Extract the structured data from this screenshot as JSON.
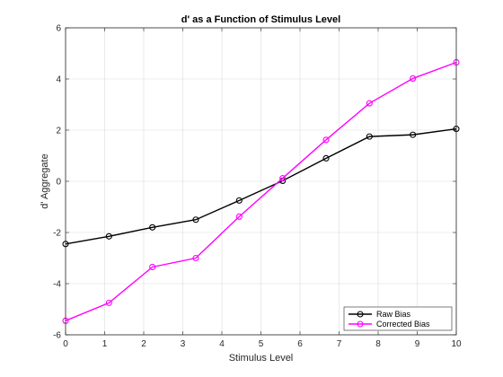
{
  "chart_data": {
    "type": "line",
    "title": "d' as a Function of Stimulus Level",
    "xlabel": "Stimulus Level",
    "ylabel": "d' Aggregate",
    "xlim": [
      0,
      10
    ],
    "ylim": [
      -6,
      6
    ],
    "xticks": [
      "0",
      "1",
      "2",
      "3",
      "4",
      "5",
      "6",
      "7",
      "8",
      "9",
      "10"
    ],
    "yticks": [
      "-6",
      "-4",
      "-2",
      "0",
      "2",
      "4",
      "6"
    ],
    "grid": true,
    "legend_position": "bottom-right",
    "x": [
      0,
      1.111,
      2.222,
      3.333,
      4.444,
      5.556,
      6.667,
      7.778,
      8.889,
      10
    ],
    "series": [
      {
        "name": "Raw Bias",
        "color": "#000000",
        "marker": "circle",
        "values": [
          -2.45,
          -2.15,
          -1.8,
          -1.5,
          -0.75,
          0.02,
          0.9,
          1.75,
          1.82,
          2.05
        ]
      },
      {
        "name": "Corrected Bias",
        "color": "#ff00ff",
        "marker": "circle",
        "values": [
          -5.45,
          -4.75,
          -3.35,
          -3.0,
          -1.38,
          0.12,
          1.62,
          3.05,
          4.02,
          4.65
        ]
      }
    ]
  }
}
